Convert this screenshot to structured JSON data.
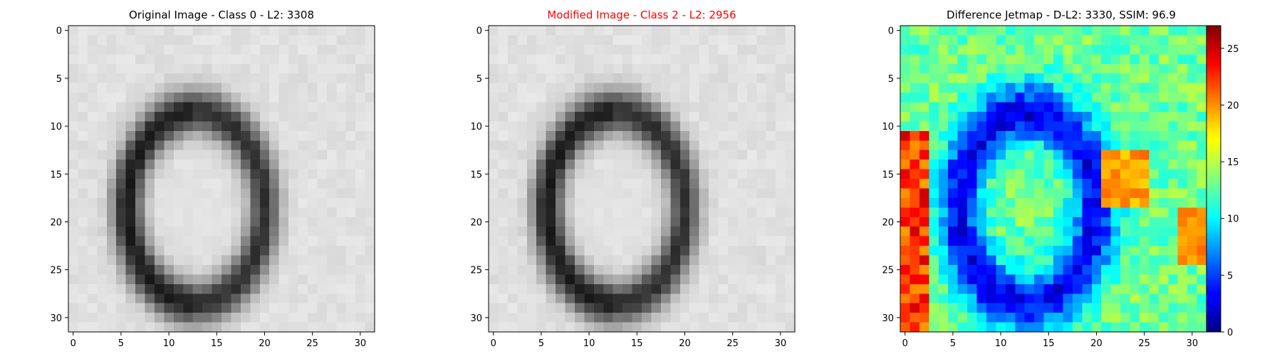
{
  "figure": {
    "panels": [
      {
        "title": "Original Image - Class 0 - L2: 3308",
        "title_color": "#000000"
      },
      {
        "title": "Modified Image - Class 2 - L2: 2956",
        "title_color": "#ff0000"
      },
      {
        "title": "Difference Jetmap - D-L2: 3330, SSIM: 96.9",
        "title_color": "#000000"
      }
    ]
  },
  "chart_data": [
    {
      "type": "heatmap",
      "title": "Original Image - Class 0 - L2: 3308",
      "colormap": "gray",
      "xlabel": "",
      "ylabel": "",
      "xlim": [
        -0.5,
        31.5
      ],
      "ylim": [
        31.5,
        -0.5
      ],
      "x_ticks": [
        0,
        5,
        10,
        15,
        20,
        25,
        30
      ],
      "y_ticks": [
        0,
        5,
        10,
        15,
        20,
        25,
        30
      ],
      "grid": false
    },
    {
      "type": "heatmap",
      "title": "Modified Image - Class 2 - L2: 2956",
      "colormap": "gray",
      "xlabel": "",
      "ylabel": "",
      "xlim": [
        -0.5,
        31.5
      ],
      "ylim": [
        31.5,
        -0.5
      ],
      "x_ticks": [
        0,
        5,
        10,
        15,
        20,
        25,
        30
      ],
      "y_ticks": [
        0,
        5,
        10,
        15,
        20,
        25,
        30
      ],
      "grid": false
    },
    {
      "type": "heatmap",
      "title": "Difference Jetmap - D-L2: 3330, SSIM: 96.9",
      "colormap": "jet",
      "xlabel": "",
      "ylabel": "",
      "xlim": [
        -0.5,
        31.5
      ],
      "ylim": [
        31.5,
        -0.5
      ],
      "x_ticks": [
        0,
        5,
        10,
        15,
        20,
        25,
        30
      ],
      "y_ticks": [
        0,
        5,
        10,
        15,
        20,
        25,
        30
      ],
      "grid": false,
      "colorbar": {
        "range": [
          0,
          27
        ],
        "ticks": [
          0,
          5,
          10,
          15,
          20,
          25
        ]
      }
    }
  ]
}
